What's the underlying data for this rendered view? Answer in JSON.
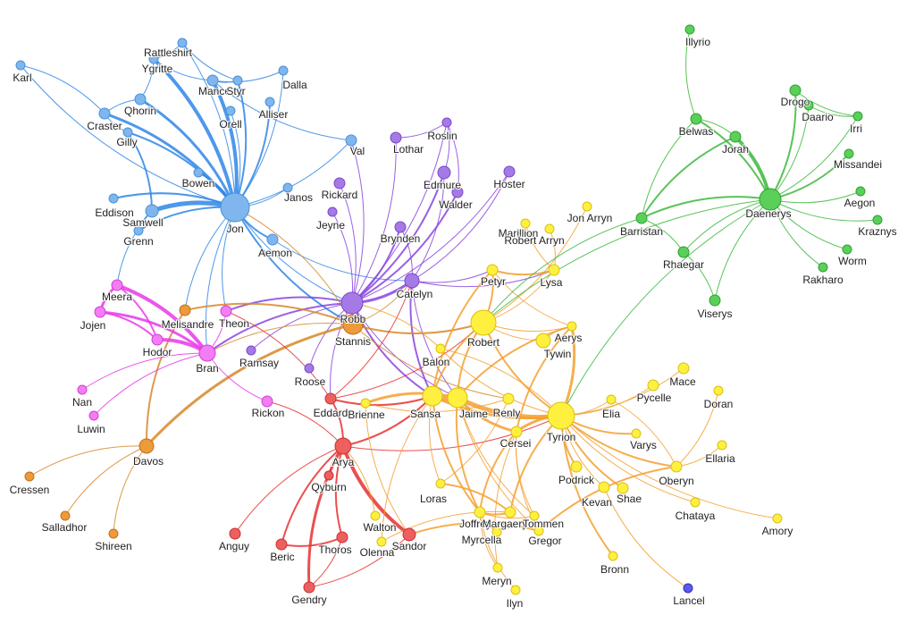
{
  "nodes": [
    "Karl",
    "Rattleshirt",
    "Ygritte",
    "Mance",
    "Styr",
    "Dalla",
    "Qhorin",
    "Orell",
    "Alliser",
    "Craster",
    "Gilly",
    "Val",
    "Bowen",
    "Janos",
    "Jon",
    "Eddison",
    "Samwell",
    "Grenn",
    "Aemon",
    "Lothar",
    "Roslin",
    "Edmure",
    "Hoster",
    "Rickard",
    "Walder",
    "Jeyne",
    "Brynden",
    "Catelyn",
    "Robb",
    "Ramsay",
    "Roose",
    "Stannis",
    "Melisandre",
    "Davos",
    "Cressen",
    "Salladhor",
    "Shireen",
    "Meera",
    "Theon",
    "Jojen",
    "Hodor",
    "Bran",
    "Nan",
    "Luwin",
    "Rickon",
    "Eddard",
    "Arya",
    "Qyburn",
    "Anguy",
    "Beric",
    "Thoros",
    "Sandor",
    "Gendry",
    "Jon Arryn",
    "Marillion",
    "Robert Arryn",
    "Petyr",
    "Lysa",
    "Robert",
    "Aerys",
    "Tywin",
    "Balon",
    "Brienne",
    "Sansa",
    "Jaime",
    "Renly",
    "Tyrion",
    "Elia",
    "Mace",
    "Pycelle",
    "Doran",
    "Varys",
    "Ellaria",
    "Cersei",
    "Oberyn",
    "Podrick",
    "Kevan",
    "Shae",
    "Chataya",
    "Loras",
    "Walton",
    "Joffrey",
    "Margaery",
    "Tommen",
    "Myrcella",
    "Gregor",
    "Olenna",
    "Amory",
    "Bronn",
    "Meryn",
    "Ilyn",
    "Lancel",
    "Illyrio",
    "Drogo",
    "Daario",
    "Irri",
    "Belwas",
    "Jorah",
    "Missandei",
    "Daenerys",
    "Aegon",
    "Barristan",
    "Kraznys",
    "Rhaegar",
    "Worm",
    "Rakharo",
    "Viserys"
  ]
}
